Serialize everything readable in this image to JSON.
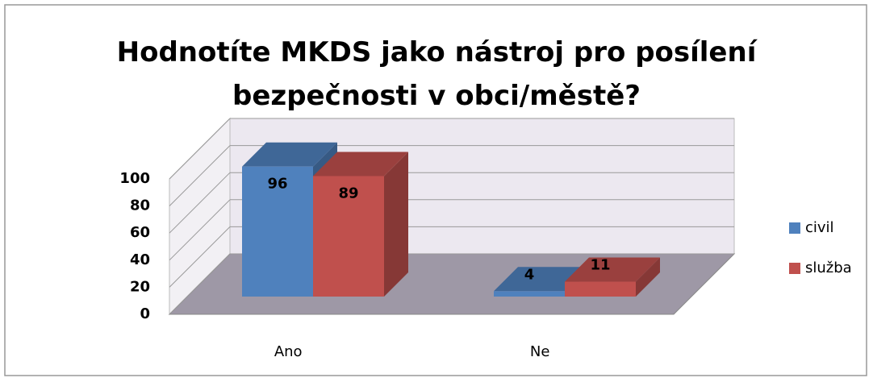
{
  "chart_data": {
    "type": "bar3d",
    "title": "Hodnotíte MKDS jako nástroj pro posílení bezpečnosti v obci/městě?",
    "categories": [
      "Ano",
      "Ne"
    ],
    "series": [
      {
        "name": "civil",
        "color": "#4f81bd",
        "values": [
          96,
          4
        ]
      },
      {
        "name": "služba",
        "color": "#c0504d",
        "values": [
          89,
          11
        ]
      }
    ],
    "ylim": [
      0,
      100
    ],
    "yticks": [
      0,
      20,
      40,
      60,
      80,
      100
    ],
    "grid": true,
    "legend": "right"
  }
}
